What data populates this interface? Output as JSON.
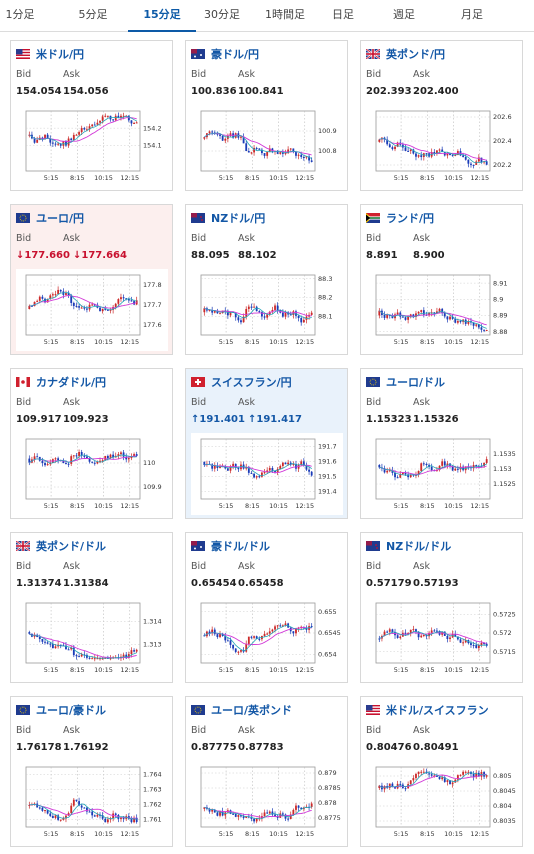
{
  "tabs": [
    {
      "label": "1分足",
      "active": false
    },
    {
      "label": "5分足",
      "active": false
    },
    {
      "label": "15分足",
      "active": true
    },
    {
      "label": "30分足",
      "active": false
    },
    {
      "label": "1時間足",
      "active": false
    },
    {
      "label": "日足",
      "active": false
    },
    {
      "label": "週足",
      "active": false
    },
    {
      "label": "月足",
      "active": false
    }
  ],
  "labels": {
    "bid": "Bid",
    "ask": "Ask"
  },
  "x_ticks": [
    "5:15",
    "8:15",
    "10:15",
    "12:15"
  ],
  "colors": {
    "up": "#cc2a2a",
    "down": "#1a3bb8",
    "ma_pink": "#d23ad8",
    "ma_teal": "#26a5b8",
    "accent": "#1357a6"
  },
  "cards": [
    {
      "name": "usdjpy",
      "flag": "us",
      "title": "米ドル/円",
      "bid": "154.054",
      "ask": "154.056",
      "direction": "",
      "yticks": [
        "154.2",
        "154.1"
      ],
      "ylim": [
        153.95,
        154.3
      ],
      "highlight": ""
    },
    {
      "name": "audjpy",
      "flag": "au",
      "title": "豪ドル/円",
      "bid": "100.836",
      "ask": "100.841",
      "direction": "",
      "yticks": [
        "100.9",
        "100.8"
      ],
      "ylim": [
        100.7,
        101.0
      ],
      "highlight": ""
    },
    {
      "name": "gbpjpy",
      "flag": "gb",
      "title": "英ポンド/円",
      "bid": "202.393",
      "ask": "202.400",
      "direction": "",
      "yticks": [
        "202.6",
        "202.4",
        "202.2"
      ],
      "ylim": [
        202.15,
        202.65
      ],
      "highlight": ""
    },
    {
      "name": "eurjpy",
      "flag": "eu",
      "title": "ユーロ/円",
      "bid": "177.660",
      "ask": "177.664",
      "direction": "down",
      "arrow": "↓",
      "yticks": [
        "177.8",
        "177.7",
        "177.6"
      ],
      "ylim": [
        177.55,
        177.85
      ],
      "highlight": "pink"
    },
    {
      "name": "nzdjpy",
      "flag": "nz",
      "title": "NZドル/円",
      "bid": "88.095",
      "ask": "88.102",
      "direction": "",
      "yticks": [
        "88.3",
        "88.2",
        "88.1"
      ],
      "ylim": [
        88.0,
        88.32
      ],
      "highlight": ""
    },
    {
      "name": "zarjpy",
      "flag": "za",
      "title": "ランド/円",
      "bid": "8.891",
      "ask": "8.900",
      "direction": "",
      "yticks": [
        "8.91",
        "8.9",
        "8.89",
        "8.88"
      ],
      "ylim": [
        8.878,
        8.915
      ],
      "highlight": ""
    },
    {
      "name": "cadjpy",
      "flag": "ca",
      "title": "カナダドル/円",
      "bid": "109.917",
      "ask": "109.923",
      "direction": "",
      "yticks": [
        "110",
        "109.9"
      ],
      "ylim": [
        109.85,
        110.1
      ],
      "highlight": ""
    },
    {
      "name": "chfjpy",
      "flag": "ch",
      "title": "スイスフラン/円",
      "bid": "191.401",
      "ask": "191.417",
      "direction": "up",
      "arrow": "↑",
      "yticks": [
        "191.7",
        "191.6",
        "191.5",
        "191.4"
      ],
      "ylim": [
        191.35,
        191.75
      ],
      "highlight": "blue"
    },
    {
      "name": "eurusd",
      "flag": "eu",
      "title": "ユーロ/ドル",
      "bid": "1.15323",
      "ask": "1.15326",
      "direction": "",
      "yticks": [
        "1.1535",
        "1.153",
        "1.1525"
      ],
      "ylim": [
        1.152,
        1.154
      ],
      "highlight": ""
    },
    {
      "name": "gbpusd",
      "flag": "gb",
      "title": "英ポンド/ドル",
      "bid": "1.31374",
      "ask": "1.31384",
      "direction": "",
      "yticks": [
        "1.314",
        "1.313"
      ],
      "ylim": [
        1.3122,
        1.3148
      ],
      "highlight": ""
    },
    {
      "name": "audusd",
      "flag": "au",
      "title": "豪ドル/ドル",
      "bid": "0.65454",
      "ask": "0.65458",
      "direction": "",
      "yticks": [
        "0.655",
        "0.6545",
        "0.654"
      ],
      "ylim": [
        0.6538,
        0.6552
      ],
      "highlight": ""
    },
    {
      "name": "nzdusd",
      "flag": "nz",
      "title": "NZドル/ドル",
      "bid": "0.57179",
      "ask": "0.57193",
      "direction": "",
      "yticks": [
        "0.5725",
        "0.572",
        "0.5715"
      ],
      "ylim": [
        0.5712,
        0.5728
      ],
      "highlight": ""
    },
    {
      "name": "euraud",
      "flag": "eu",
      "title": "ユーロ/豪ドル",
      "bid": "1.76178",
      "ask": "1.76192",
      "direction": "",
      "yticks": [
        "1.764",
        "1.763",
        "1.762",
        "1.761"
      ],
      "ylim": [
        1.7605,
        1.7645
      ],
      "highlight": ""
    },
    {
      "name": "eurgbp",
      "flag": "eu",
      "title": "ユーロ/英ポンド",
      "bid": "0.87775",
      "ask": "0.87783",
      "direction": "",
      "yticks": [
        "0.879",
        "0.8785",
        "0.878",
        "0.8775"
      ],
      "ylim": [
        0.8772,
        0.8792
      ],
      "highlight": ""
    },
    {
      "name": "usdchf",
      "flag": "us",
      "title": "米ドル/スイスフラン",
      "bid": "0.80476",
      "ask": "0.80491",
      "direction": "",
      "yticks": [
        "0.805",
        "0.8045",
        "0.804",
        "0.8035"
      ],
      "ylim": [
        0.8033,
        0.8053
      ],
      "highlight": ""
    }
  ]
}
